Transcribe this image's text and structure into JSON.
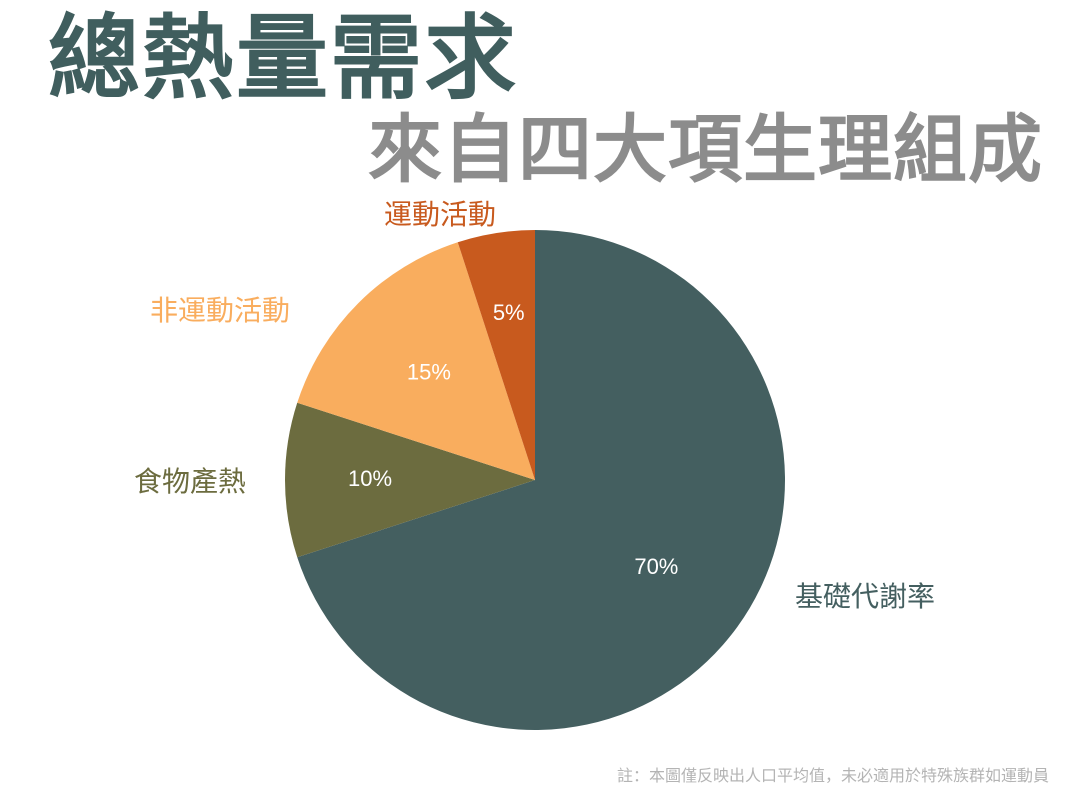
{
  "header": {
    "title": "總熱量需求",
    "subtitle": "來自四大項生理組成"
  },
  "chart_data": {
    "type": "pie",
    "slices": [
      {
        "label": "基礎代謝率",
        "value": 70,
        "value_label": "70%",
        "color": "#445f60"
      },
      {
        "label": "食物產熱",
        "value": 10,
        "value_label": "10%",
        "color": "#6c6c3f"
      },
      {
        "label": "非運動活動",
        "value": 15,
        "value_label": "15%",
        "color": "#f9ad5e"
      },
      {
        "label": "運動活動",
        "value": 5,
        "value_label": "5%",
        "color": "#c85a1e"
      }
    ],
    "start": "12 o'clock",
    "direction": "clockwise",
    "legend": "none"
  },
  "footnote": "註：本圖僅反映出人口平均值，未必適用於特殊族群如運動員"
}
